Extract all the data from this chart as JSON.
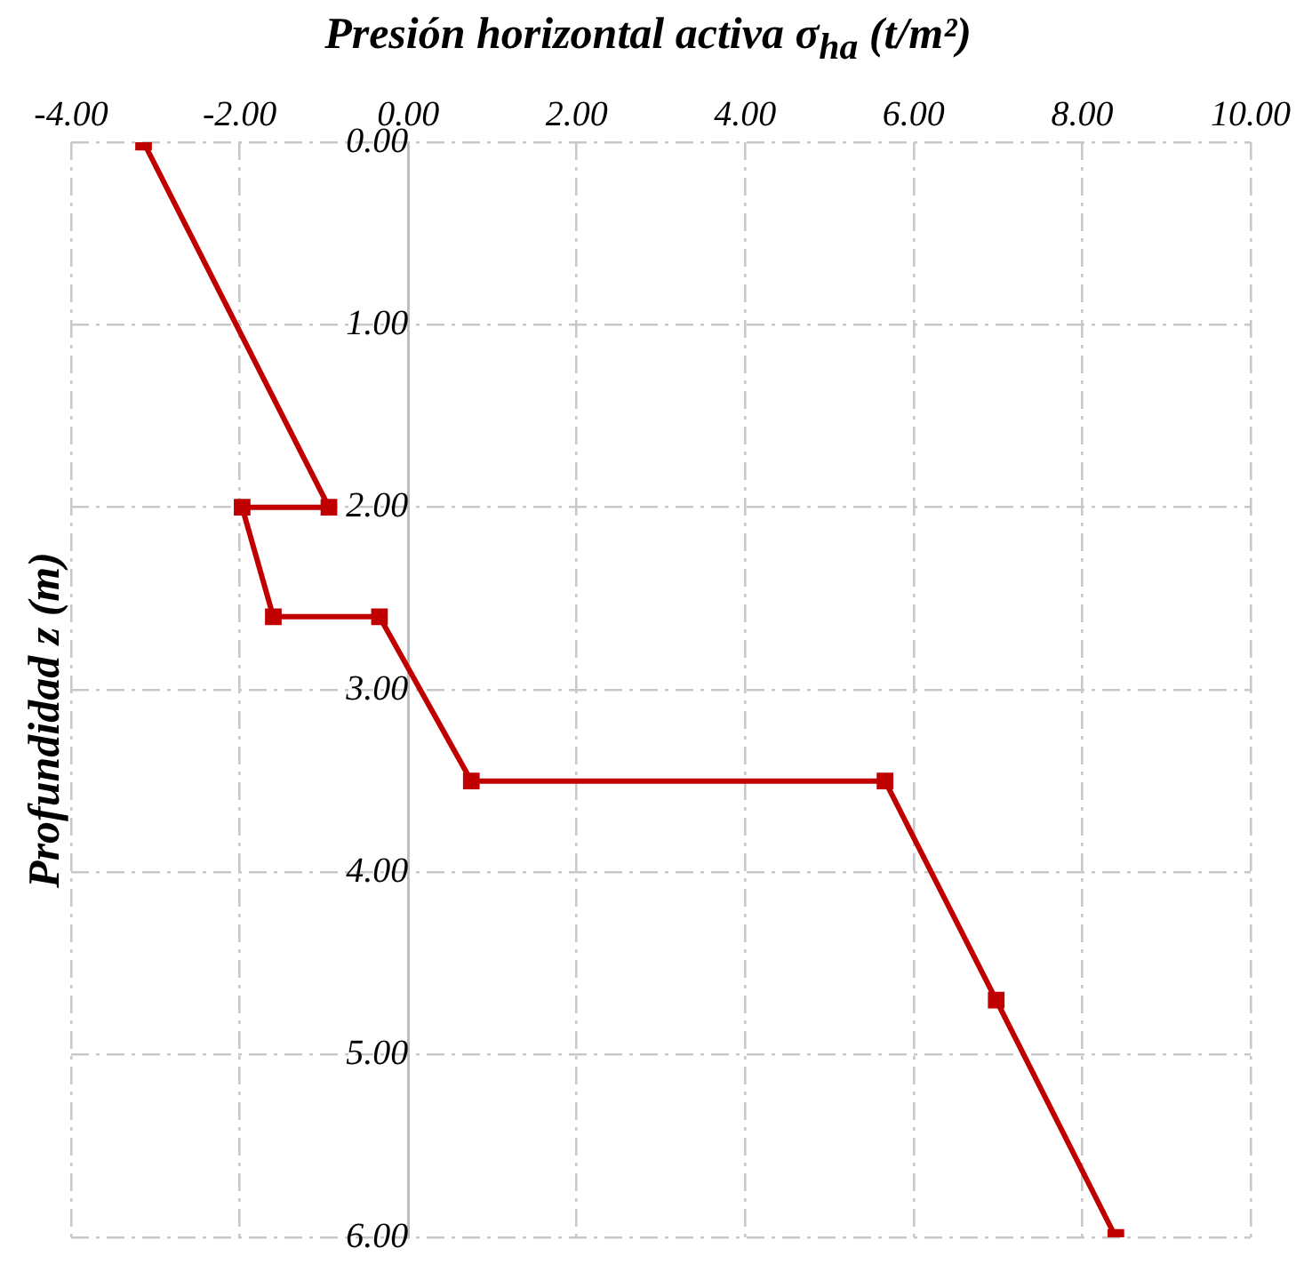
{
  "chart_data": {
    "type": "line",
    "xlabel": "Presión horizontal activa σ$_{ha}$ (t/m²)",
    "ylabel": "Profundidad z (m)",
    "x": [
      -3.14,
      -0.94,
      -1.97,
      -1.6,
      -0.34,
      0.75,
      5.66,
      6.98,
      8.4
    ],
    "values": [
      0,
      2,
      2,
      2.6,
      2.6,
      3.5,
      3.5,
      4.7,
      6
    ],
    "color": "#c00000",
    "marker": "square",
    "line_style": "solid",
    "grid": true,
    "xlim": [
      -4,
      10
    ],
    "xticks": [
      {
        "value": -4,
        "label": "-4.00"
      },
      {
        "value": -2,
        "label": "-2.00"
      },
      {
        "value": 0,
        "label": "0.00"
      },
      {
        "value": 2,
        "label": "2.00"
      },
      {
        "value": 4,
        "label": "4.00"
      },
      {
        "value": 6,
        "label": "6.00"
      },
      {
        "value": 8,
        "label": "8.00"
      },
      {
        "value": 10,
        "label": "10.00"
      }
    ],
    "ylim": [
      6,
      0
    ],
    "yticks": [
      {
        "value": 0,
        "label": "0.00"
      },
      {
        "value": 1,
        "label": "1.00"
      },
      {
        "value": 2,
        "label": "2.00"
      },
      {
        "value": 3,
        "label": "3.00"
      },
      {
        "value": 4,
        "label": "4.00"
      },
      {
        "value": 5,
        "label": "5.00"
      },
      {
        "value": 6,
        "label": "6.00"
      }
    ]
  }
}
